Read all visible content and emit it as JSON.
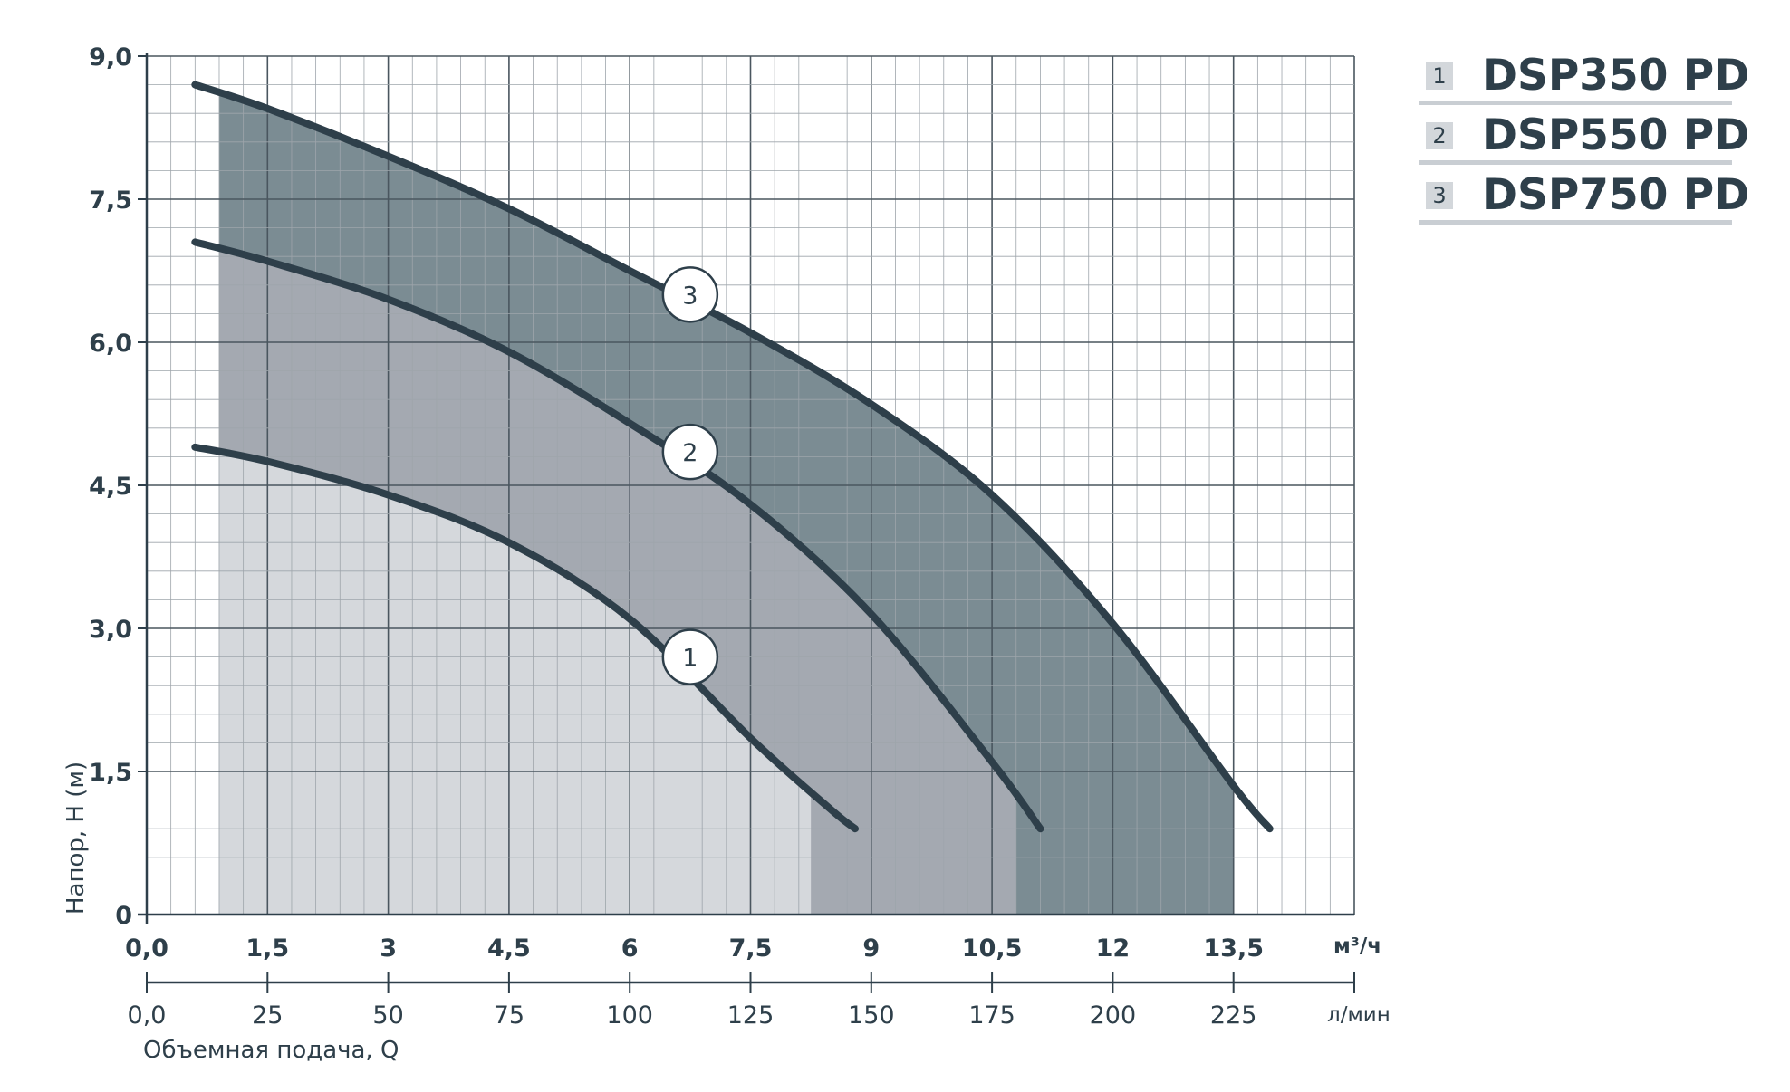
{
  "chart_data": {
    "type": "line",
    "title": "",
    "ylabel": "Напор, H (м)",
    "xlabel": "Объемная подача, Q",
    "x_unit": "м³/ч",
    "x2_unit": "л/мин",
    "ylim": [
      0,
      9
    ],
    "xlim": [
      0,
      15
    ],
    "x2lim": [
      0,
      250
    ],
    "y_ticks": [
      "0",
      "1,5",
      "3,0",
      "4,5",
      "6,0",
      "7,5",
      "9,0"
    ],
    "x_ticks": [
      "0,0",
      "1,5",
      "3",
      "4,5",
      "6",
      "7,5",
      "9",
      "10,5",
      "12",
      "13,5"
    ],
    "x2_ticks": [
      "0,0",
      "25",
      "50",
      "75",
      "100",
      "125",
      "150",
      "175",
      "200",
      "225"
    ],
    "grid": true,
    "legend_position": "top-right",
    "series": [
      {
        "marker": "1",
        "name": "DSP350 PD",
        "x": [
          0.6,
          1.5,
          3.0,
          4.5,
          6.0,
          7.5,
          8.5,
          8.8
        ],
        "y": [
          4.9,
          4.75,
          4.4,
          3.9,
          3.1,
          1.85,
          1.1,
          0.9
        ],
        "range_end": 8.25,
        "marker_at": [
          6.75,
          2.7
        ],
        "fill_color": "#d5d8dc"
      },
      {
        "marker": "2",
        "name": "DSP550 PD",
        "x": [
          0.6,
          1.5,
          3.0,
          4.5,
          6.0,
          7.5,
          9.0,
          10.5,
          11.1
        ],
        "y": [
          7.05,
          6.85,
          6.45,
          5.9,
          5.15,
          4.3,
          3.15,
          1.6,
          0.9
        ],
        "range_end": 10.8,
        "marker_at": [
          6.75,
          4.85
        ],
        "fill_color": "#a4a9b1"
      },
      {
        "marker": "3",
        "name": "DSP750 PD",
        "x": [
          0.6,
          1.5,
          3.0,
          4.5,
          6.0,
          7.5,
          9.0,
          10.5,
          12.0,
          13.5,
          13.95
        ],
        "y": [
          8.7,
          8.45,
          7.95,
          7.4,
          6.75,
          6.1,
          5.35,
          4.4,
          3.05,
          1.35,
          0.9
        ],
        "range_end": 13.5,
        "marker_at": [
          6.75,
          6.5
        ],
        "fill_color": "#7b8c93"
      }
    ]
  }
}
